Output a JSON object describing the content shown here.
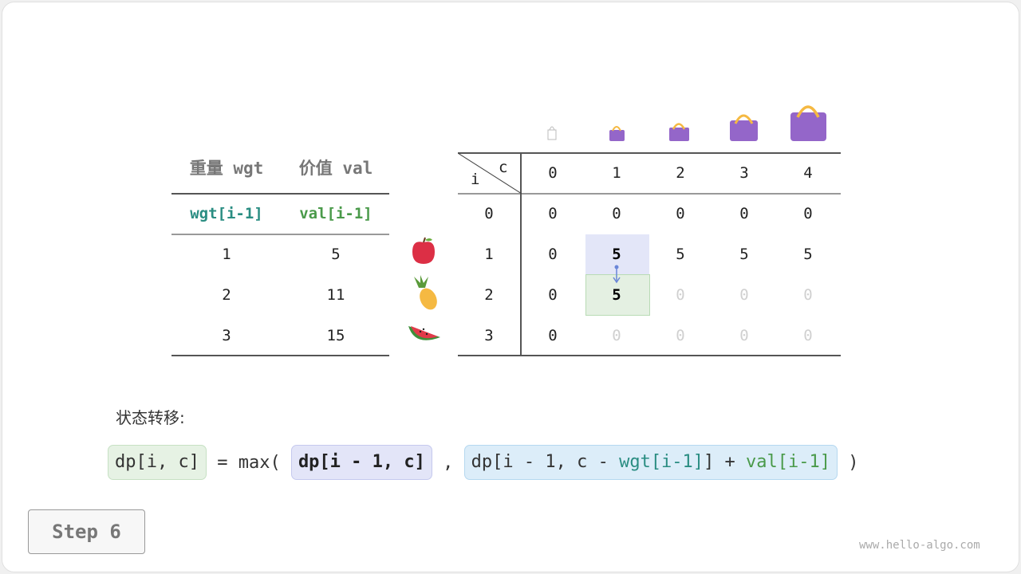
{
  "items_table": {
    "headers": [
      "重量 wgt",
      "价值 val"
    ],
    "subheaders": [
      "wgt[i-1]",
      "val[i-1]"
    ],
    "rows": [
      [
        "1",
        "5"
      ],
      [
        "2",
        "11"
      ],
      [
        "3",
        "15"
      ]
    ],
    "fruit_icons": [
      "apple-icon",
      "pineapple-icon",
      "watermelon-icon"
    ]
  },
  "dp_table": {
    "corner_i": "i",
    "corner_c": "c",
    "col_headers": [
      "0",
      "1",
      "2",
      "3",
      "4"
    ],
    "row_headers": [
      "0",
      "1",
      "2",
      "3"
    ],
    "rows": [
      [
        "0",
        "0",
        "0",
        "0",
        "0"
      ],
      [
        "0",
        "5",
        "5",
        "5",
        "5"
      ],
      [
        "0",
        "5",
        "0",
        "0",
        "0"
      ],
      [
        "0",
        "0",
        "0",
        "0",
        "0"
      ]
    ],
    "computed": [
      [
        true,
        true,
        true,
        true,
        true
      ],
      [
        true,
        true,
        true,
        true,
        true
      ],
      [
        true,
        true,
        false,
        false,
        false
      ],
      [
        true,
        false,
        false,
        false,
        false
      ]
    ],
    "highlight_source": [
      1,
      1
    ],
    "highlight_target": [
      2,
      1
    ],
    "bag_icons": [
      "bag-empty-icon",
      "bag-1-icon",
      "bag-2-icon",
      "bag-3-icon",
      "bag-4-icon"
    ]
  },
  "transition": {
    "label": "状态转移:",
    "lhs": "dp[i, c]",
    "eq": " = max( ",
    "opt1": "dp[i - 1, c]",
    "comma": " , ",
    "opt2_a": "dp[i - 1, c - ",
    "opt2_wgt": "wgt[i-1]",
    "opt2_b": "] + ",
    "opt2_val": "val[i-1]",
    "close": " )"
  },
  "step_label": "Step 6",
  "watermark": "www.hello-algo.com",
  "colors": {
    "source_highlight": "#e3e6f8",
    "target_highlight": "#e4f0e2",
    "arrow": "#6a86d8",
    "bag": "#9466c9",
    "handle": "#f5b942",
    "teal": "#2a8d82",
    "green": "#4a9a4a"
  }
}
